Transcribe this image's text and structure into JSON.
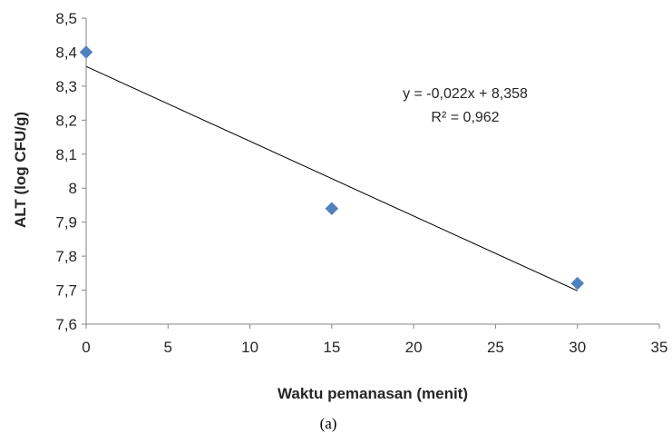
{
  "chart_data": {
    "type": "scatter",
    "xlabel": "Waktu pemanasan (menit)",
    "ylabel": "ALT (log CFU/g)",
    "xlim": [
      0,
      35
    ],
    "ylim": [
      7.6,
      8.5
    ],
    "x_ticks": [
      "0",
      "5",
      "10",
      "15",
      "20",
      "25",
      "30",
      "35"
    ],
    "y_ticks": [
      "7,6",
      "7,7",
      "7,8",
      "7,9",
      "8",
      "8,1",
      "8,2",
      "8,3",
      "8,4",
      "8,5"
    ],
    "series": [
      {
        "x": [
          0,
          15,
          30
        ],
        "y": [
          8.4,
          7.94,
          7.72
        ],
        "color": "#4F81BD",
        "marker": "diamond"
      }
    ],
    "trendline": {
      "type": "linear",
      "slope": -0.022,
      "intercept": 8.358,
      "x_range": [
        0,
        30
      ],
      "equation": "y = -0,022x + 8,358",
      "r_squared": "R² = 0,962"
    },
    "grid": false,
    "caption": "(a)"
  }
}
